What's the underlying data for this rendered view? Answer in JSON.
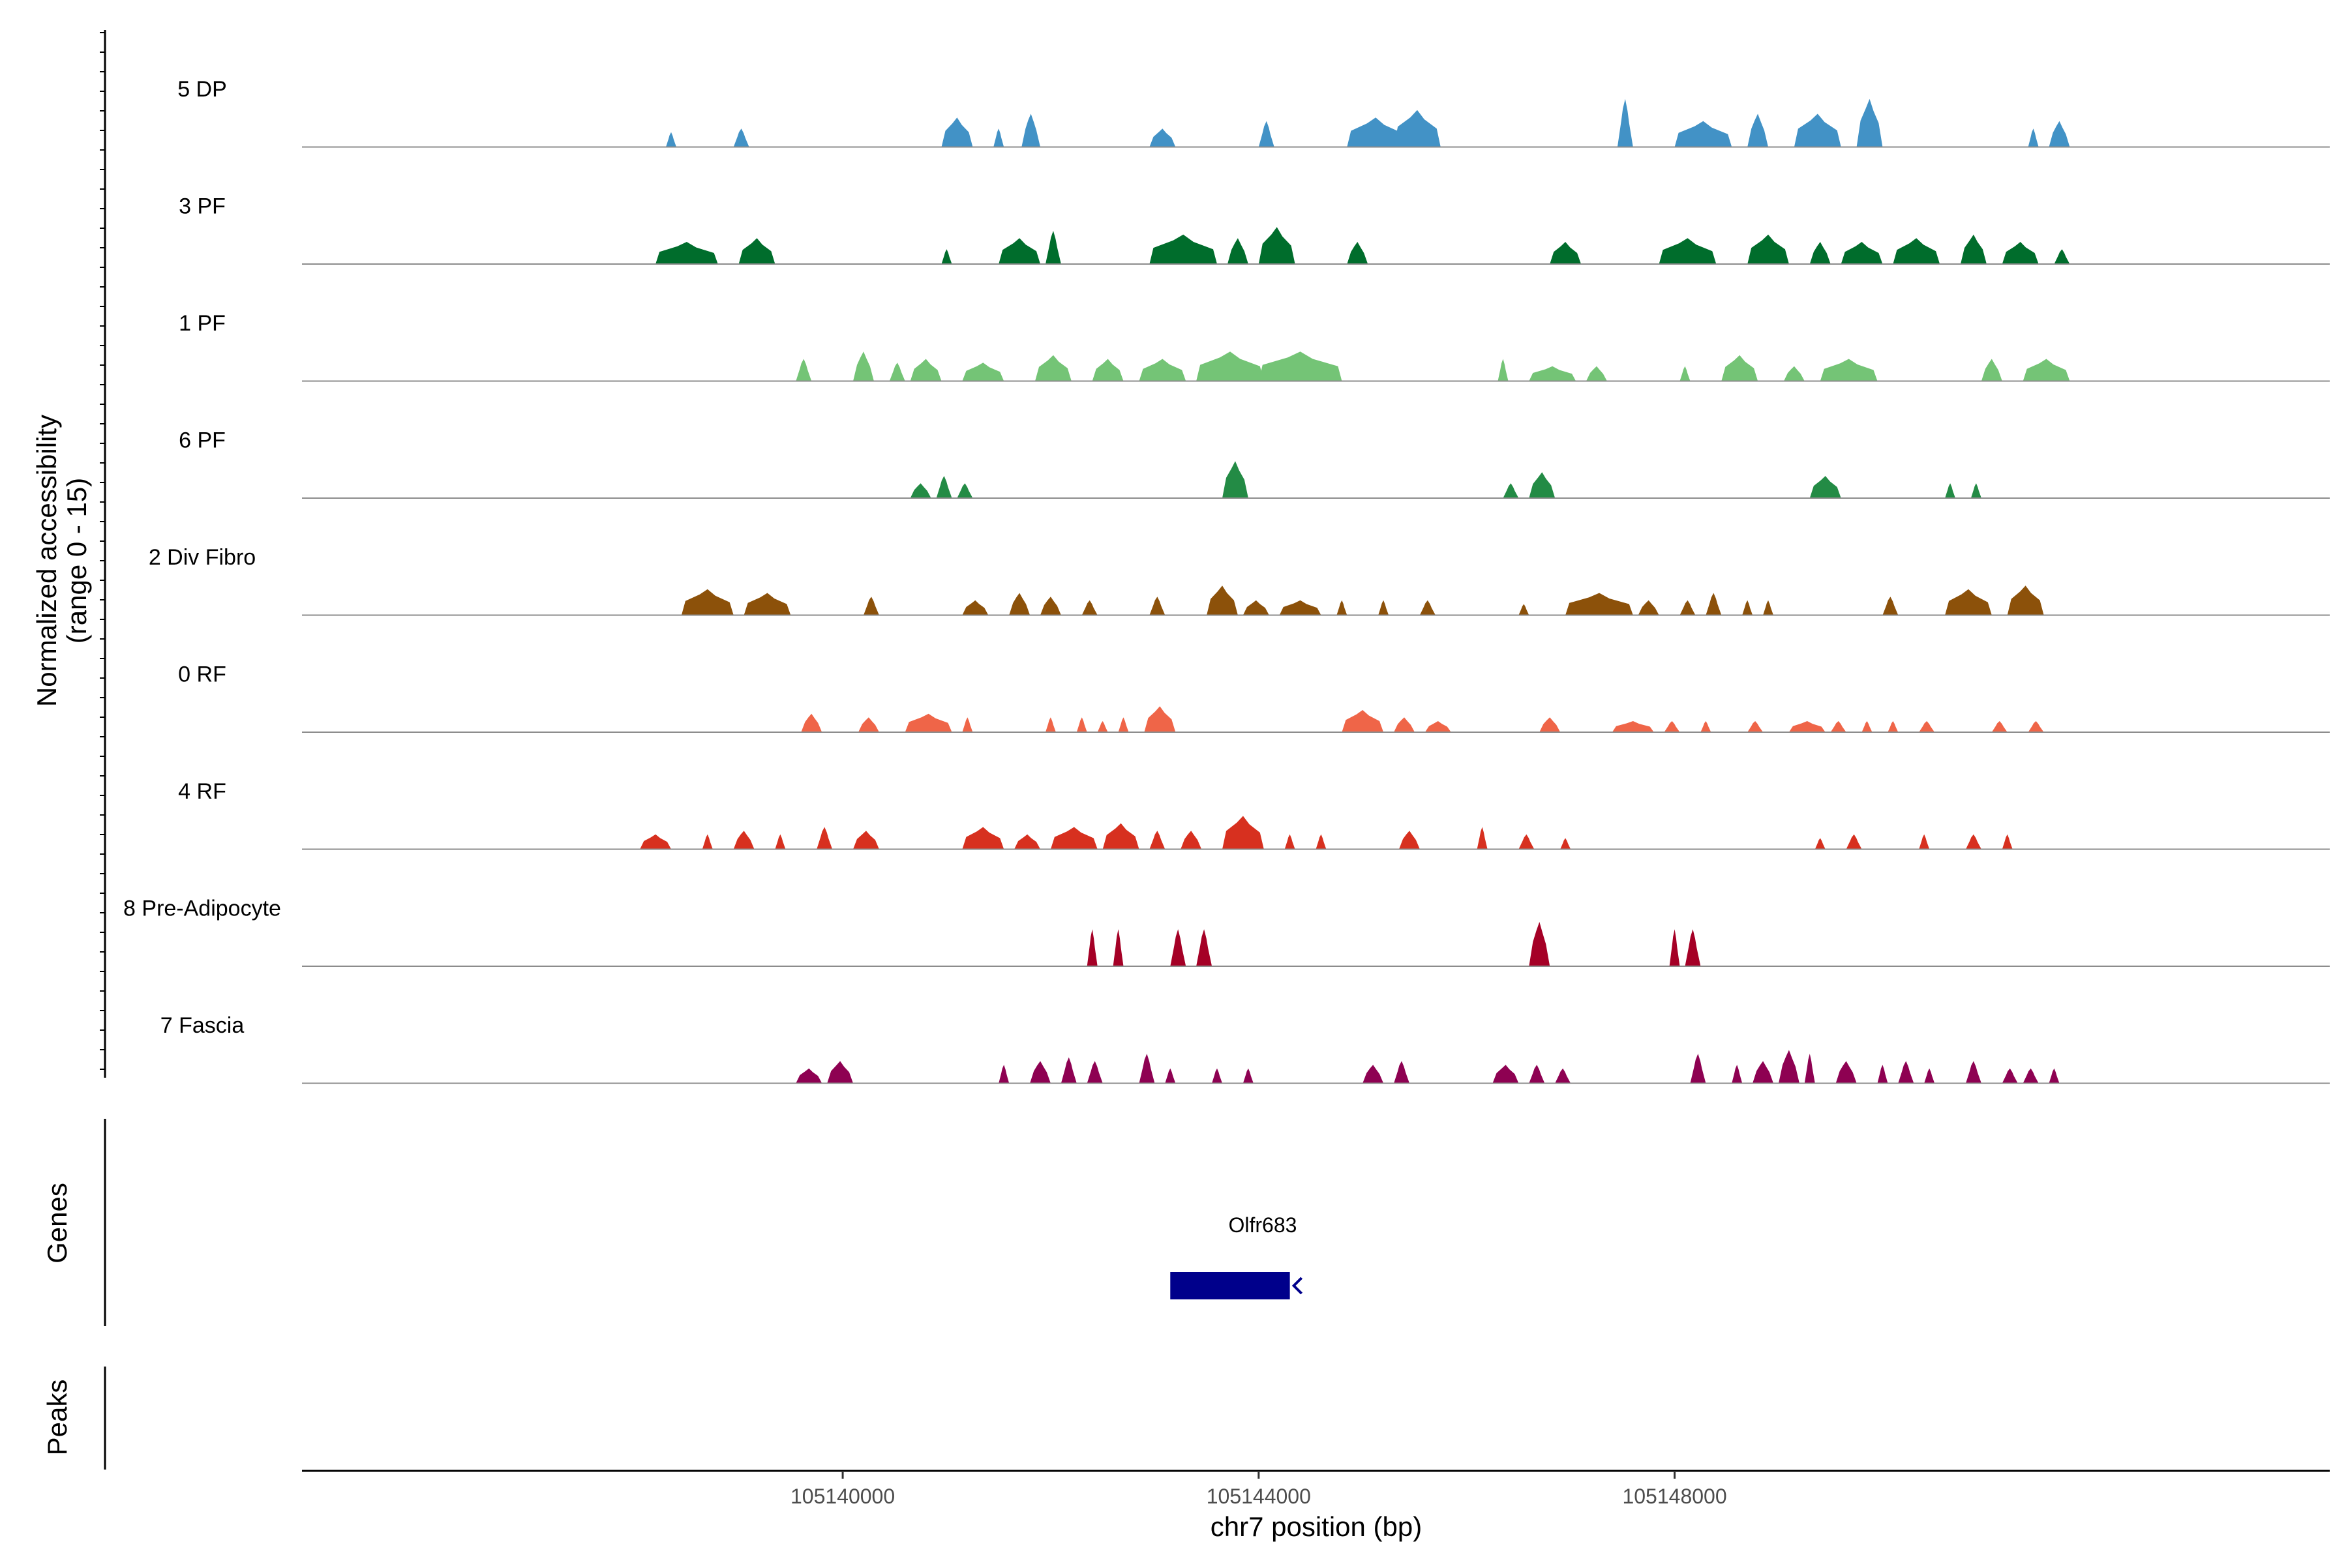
{
  "chart_data": {
    "type": "area",
    "title": "",
    "chromosome": "chr7",
    "xlabel": "chr7 position (bp)",
    "ylabel": "Normalized accessibility",
    "ylabel_sub": "(range 0 - 15)",
    "xlim": [
      105134800,
      105154300
    ],
    "ylim": [
      0,
      15
    ],
    "x_ticks": [
      105140000,
      105144000,
      105148000
    ],
    "x_tick_labels": [
      "105140000",
      "105144000",
      "105148000"
    ],
    "tracks": [
      {
        "name": "5 DP",
        "color": "#4292c6",
        "peaks": [
          [
            105138300,
            105138400,
            2
          ],
          [
            105138950,
            105139100,
            2.5
          ],
          [
            105140950,
            105141250,
            4
          ],
          [
            105141450,
            105141550,
            2.5
          ],
          [
            105141720,
            105141900,
            4.5
          ],
          [
            105142950,
            105143200,
            2.5
          ],
          [
            105144000,
            105144150,
            3.5
          ],
          [
            105144850,
            105145400,
            4
          ],
          [
            105145300,
            105145750,
            5
          ],
          [
            105147450,
            105147600,
            6.5
          ],
          [
            105148000,
            105148550,
            3.5
          ],
          [
            105148700,
            105148900,
            4.5
          ],
          [
            105149150,
            105149600,
            4.5
          ],
          [
            105149750,
            105150000,
            6.5
          ],
          [
            105151400,
            105151500,
            2.5
          ],
          [
            105151600,
            105151800,
            3.5
          ]
        ]
      },
      {
        "name": "3 PF",
        "color": "#006d2c",
        "peaks": [
          [
            105138200,
            105138800,
            3
          ],
          [
            105139000,
            105139350,
            3.5
          ],
          [
            105140950,
            105141050,
            2
          ],
          [
            105141500,
            105141900,
            3.5
          ],
          [
            105141950,
            105142100,
            4.5
          ],
          [
            105142950,
            105143600,
            4
          ],
          [
            105143700,
            105143900,
            3.5
          ],
          [
            105144000,
            105144350,
            5
          ],
          [
            105144850,
            105145050,
            3
          ],
          [
            105146800,
            105147100,
            3
          ],
          [
            105147850,
            105148400,
            3.5
          ],
          [
            105148700,
            105149100,
            4
          ],
          [
            105149300,
            105149500,
            3
          ],
          [
            105149600,
            105150000,
            3
          ],
          [
            105150100,
            105150550,
            3.5
          ],
          [
            105150750,
            105151000,
            4
          ],
          [
            105151150,
            105151500,
            3
          ],
          [
            105151650,
            105151800,
            2
          ]
        ]
      },
      {
        "name": "1 PF",
        "color": "#74c476",
        "peaks": [
          [
            105139550,
            105139700,
            3
          ],
          [
            105140100,
            105140300,
            4
          ],
          [
            105140450,
            105140600,
            2.5
          ],
          [
            105140650,
            105140950,
            3
          ],
          [
            105141150,
            105141550,
            2.5
          ],
          [
            105141850,
            105142200,
            3.5
          ],
          [
            105142400,
            105142700,
            3
          ],
          [
            105142850,
            105143300,
            3
          ],
          [
            105143400,
            105144050,
            4
          ],
          [
            105144000,
            105144800,
            4
          ],
          [
            105146300,
            105146400,
            3
          ],
          [
            105146600,
            105147050,
            2
          ],
          [
            105147150,
            105147350,
            2
          ],
          [
            105148050,
            105148150,
            2
          ],
          [
            105148450,
            105148800,
            3.5
          ],
          [
            105149050,
            105149250,
            2
          ],
          [
            105149400,
            105149950,
            3
          ],
          [
            105150950,
            105151150,
            3
          ],
          [
            105151350,
            105151800,
            3
          ]
        ]
      },
      {
        "name": "6 PF",
        "color": "#238b45",
        "peaks": [
          [
            105140650,
            105140850,
            2
          ],
          [
            105140900,
            105141050,
            3
          ],
          [
            105141100,
            105141250,
            2
          ],
          [
            105143650,
            105143900,
            5
          ],
          [
            105146350,
            105146500,
            2
          ],
          [
            105146600,
            105146850,
            3.5
          ],
          [
            105149300,
            105149600,
            3
          ],
          [
            105150600,
            105150700,
            2
          ],
          [
            105150850,
            105150950,
            2
          ]
        ]
      },
      {
        "name": "2 Div Fibro",
        "color": "#8c510a",
        "peaks": [
          [
            105138450,
            105138950,
            3.5
          ],
          [
            105139050,
            105139500,
            3
          ],
          [
            105140200,
            105140350,
            2.5
          ],
          [
            105141150,
            105141400,
            2
          ],
          [
            105141600,
            105141800,
            3
          ],
          [
            105141900,
            105142100,
            2.5
          ],
          [
            105142300,
            105142450,
            2
          ],
          [
            105142950,
            105143100,
            2.5
          ],
          [
            105143500,
            105143800,
            4
          ],
          [
            105143850,
            105144100,
            2
          ],
          [
            105144200,
            105144600,
            2
          ],
          [
            105144750,
            105144850,
            2
          ],
          [
            105145150,
            105145250,
            2
          ],
          [
            105145550,
            105145700,
            2
          ],
          [
            105146500,
            105146600,
            1.5
          ],
          [
            105146950,
            105147600,
            3
          ],
          [
            105147650,
            105147850,
            2
          ],
          [
            105148050,
            105148200,
            2
          ],
          [
            105148300,
            105148450,
            3
          ],
          [
            105148650,
            105148750,
            2
          ],
          [
            105148850,
            105148950,
            2
          ],
          [
            105150000,
            105150150,
            2.5
          ],
          [
            105150600,
            105151050,
            3.5
          ],
          [
            105151200,
            105151550,
            4
          ]
        ]
      },
      {
        "name": "0 RF",
        "color": "#ef6548",
        "peaks": [
          [
            105139600,
            105139800,
            2.5
          ],
          [
            105140150,
            105140350,
            2
          ],
          [
            105140600,
            105141050,
            2.5
          ],
          [
            105141150,
            105141250,
            2
          ],
          [
            105141950,
            105142050,
            2
          ],
          [
            105142250,
            105142350,
            2
          ],
          [
            105142450,
            105142550,
            1.5
          ],
          [
            105142650,
            105142750,
            2
          ],
          [
            105142900,
            105143200,
            3.5
          ],
          [
            105144800,
            105145200,
            3
          ],
          [
            105145300,
            105145500,
            2
          ],
          [
            105145600,
            105145850,
            1.5
          ],
          [
            105146700,
            105146900,
            2
          ],
          [
            105147400,
            105147800,
            1.5
          ],
          [
            105147900,
            105148050,
            1.5
          ],
          [
            105148250,
            105148350,
            1.5
          ],
          [
            105148700,
            105148850,
            1.5
          ],
          [
            105149100,
            105149450,
            1.5
          ],
          [
            105149500,
            105149650,
            1.5
          ],
          [
            105149800,
            105149900,
            1.5
          ],
          [
            105150050,
            105150150,
            1.5
          ],
          [
            105150350,
            105150500,
            1.5
          ],
          [
            105151050,
            105151200,
            1.5
          ],
          [
            105151400,
            105151550,
            1.5
          ]
        ]
      },
      {
        "name": "4 RF",
        "color": "#d7301f",
        "peaks": [
          [
            105138050,
            105138350,
            2
          ],
          [
            105138650,
            105138750,
            2
          ],
          [
            105138950,
            105139150,
            2.5
          ],
          [
            105139350,
            105139450,
            2
          ],
          [
            105139750,
            105139900,
            3
          ],
          [
            105140100,
            105140350,
            2.5
          ],
          [
            105141150,
            105141550,
            3
          ],
          [
            105141650,
            105141900,
            2
          ],
          [
            105142000,
            105142450,
            3
          ],
          [
            105142500,
            105142850,
            3.5
          ],
          [
            105142950,
            105143100,
            2.5
          ],
          [
            105143250,
            105143450,
            2.5
          ],
          [
            105143650,
            105144050,
            4.5
          ],
          [
            105144250,
            105144350,
            2
          ],
          [
            105144550,
            105144650,
            2
          ],
          [
            105145350,
            105145550,
            2.5
          ],
          [
            105146100,
            105146200,
            3
          ],
          [
            105146500,
            105146650,
            2
          ],
          [
            105146900,
            105147000,
            1.5
          ],
          [
            105149350,
            105149450,
            1.5
          ],
          [
            105149650,
            105149800,
            2
          ],
          [
            105150350,
            105150450,
            2
          ],
          [
            105150800,
            105150950,
            2
          ],
          [
            105151150,
            105151250,
            2
          ]
        ]
      },
      {
        "name": "8 Pre-Adipocyte",
        "color": "#a50026",
        "peaks": [
          [
            105142350,
            105142450,
            5
          ],
          [
            105142600,
            105142700,
            5
          ],
          [
            105143150,
            105143300,
            5
          ],
          [
            105143400,
            105143550,
            5
          ],
          [
            105146600,
            105146800,
            6
          ],
          [
            105147950,
            105148050,
            5
          ],
          [
            105148100,
            105148250,
            5
          ]
        ]
      },
      {
        "name": "7 Fascia",
        "color": "#8e0152",
        "peaks": [
          [
            105139550,
            105139800,
            2
          ],
          [
            105139850,
            105140100,
            3
          ],
          [
            105141500,
            105141600,
            2.5
          ],
          [
            105141800,
            105142000,
            3
          ],
          [
            105142100,
            105142250,
            3.5
          ],
          [
            105142350,
            105142500,
            3
          ],
          [
            105142850,
            105143000,
            4
          ],
          [
            105143100,
            105143200,
            2
          ],
          [
            105143550,
            105143650,
            2
          ],
          [
            105143850,
            105143950,
            2
          ],
          [
            105145000,
            105145200,
            2.5
          ],
          [
            105145300,
            105145450,
            3
          ],
          [
            105146250,
            105146500,
            2.5
          ],
          [
            105146600,
            105146750,
            2.5
          ],
          [
            105146850,
            105147000,
            2
          ],
          [
            105148150,
            105148300,
            4
          ],
          [
            105148550,
            105148650,
            2.5
          ],
          [
            105148750,
            105148950,
            3
          ],
          [
            105149000,
            105149200,
            4.5
          ],
          [
            105149250,
            105149350,
            4
          ],
          [
            105149550,
            105149750,
            3
          ],
          [
            105149950,
            105150050,
            2.5
          ],
          [
            105150150,
            105150300,
            3
          ],
          [
            105150400,
            105150500,
            2
          ],
          [
            105150800,
            105150950,
            3
          ],
          [
            105151150,
            105151300,
            2
          ],
          [
            105151350,
            105151500,
            2
          ],
          [
            105151600,
            105151700,
            2
          ]
        ]
      }
    ],
    "genes": [
      {
        "name": "Olfr683",
        "start": 105143150,
        "end": 105144300,
        "strand": "-",
        "color": "#00008b"
      }
    ],
    "panels": {
      "accessibility": "Normalized accessibility",
      "genes": "Genes",
      "peaks": "Peaks"
    }
  }
}
